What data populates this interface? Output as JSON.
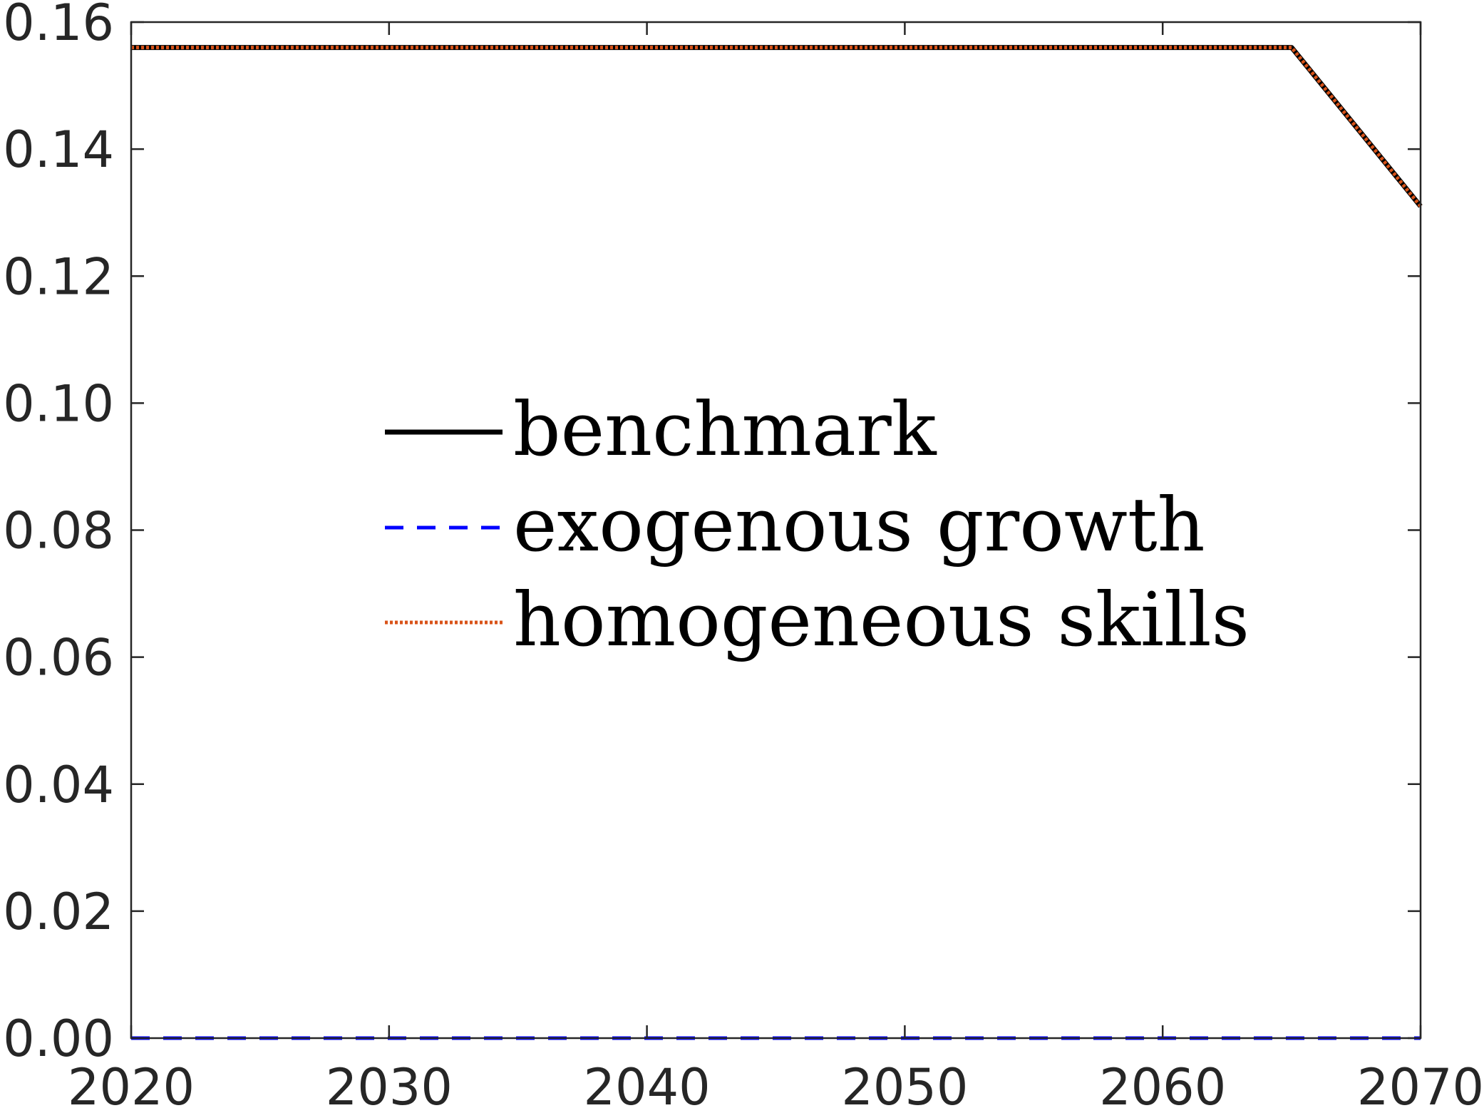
{
  "chart_data": {
    "type": "line",
    "title": "",
    "xlabel": "",
    "ylabel": "",
    "xlim": [
      2020,
      2070
    ],
    "ylim": [
      0,
      0.16
    ],
    "x_ticks": [
      2020,
      2030,
      2040,
      2050,
      2060,
      2070
    ],
    "x_tick_labels": [
      "2020",
      "2030",
      "2040",
      "2050",
      "2060",
      "2070"
    ],
    "y_ticks": [
      0,
      0.02,
      0.04,
      0.06,
      0.08,
      0.1,
      0.12,
      0.14,
      0.16
    ],
    "y_tick_labels": [
      "0.00",
      "0.02",
      "0.04",
      "0.06",
      "0.08",
      "0.10",
      "0.12",
      "0.14",
      "0.16"
    ],
    "grid": false,
    "legend_position": "center-left",
    "series": [
      {
        "name": "benchmark",
        "color": "#000000",
        "line_style": "solid",
        "x": [
          2020,
          2025,
          2030,
          2035,
          2040,
          2045,
          2050,
          2055,
          2060,
          2065,
          2070
        ],
        "y": [
          0.156,
          0.156,
          0.156,
          0.156,
          0.156,
          0.156,
          0.156,
          0.156,
          0.156,
          0.156,
          0.131
        ]
      },
      {
        "name": "exogenous growth",
        "color": "#0000ff",
        "line_style": "dashed",
        "x": [
          2020,
          2025,
          2030,
          2035,
          2040,
          2045,
          2050,
          2055,
          2060,
          2065,
          2070
        ],
        "y": [
          0,
          0,
          0,
          0,
          0,
          0,
          0,
          0,
          0,
          0,
          0
        ]
      },
      {
        "name": "homogeneous skills",
        "color": "#d95319",
        "line_style": "dotted",
        "x": [
          2020,
          2025,
          2030,
          2035,
          2040,
          2045,
          2050,
          2055,
          2060,
          2065,
          2070
        ],
        "y": [
          0.156,
          0.156,
          0.156,
          0.156,
          0.156,
          0.156,
          0.156,
          0.156,
          0.156,
          0.156,
          0.131
        ]
      }
    ]
  }
}
